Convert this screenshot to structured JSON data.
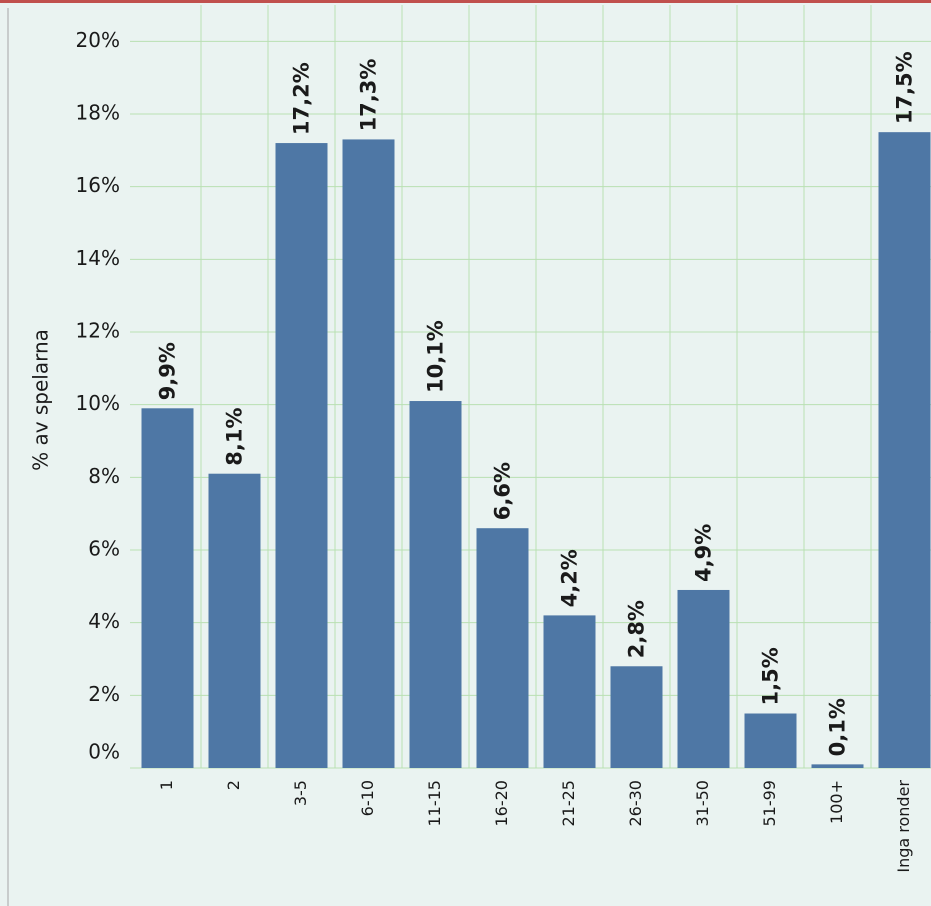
{
  "chart_data": {
    "type": "bar",
    "y_axis_label": "% av spelarna",
    "categories": [
      "1",
      "2",
      "3-5",
      "6-10",
      "11-15",
      "16-20",
      "21-25",
      "26-30",
      "31-50",
      "51-99",
      "100+",
      "Inga ronder"
    ],
    "values": [
      9.9,
      8.1,
      17.2,
      17.3,
      10.1,
      6.6,
      4.2,
      2.8,
      4.9,
      1.5,
      0.1,
      17.5
    ],
    "value_labels": [
      "9,9%",
      "8,1%",
      "17,2%",
      "17,3%",
      "10,1%",
      "6,6%",
      "4,2%",
      "2,8%",
      "4,9%",
      "1,5%",
      "0,1%",
      "17,5%"
    ],
    "color": "#4e77a5",
    "ylim": [
      0,
      21
    ],
    "yticks": [
      {
        "value": 0,
        "label": "0%"
      },
      {
        "value": 2,
        "label": "2%"
      },
      {
        "value": 4,
        "label": "4%"
      },
      {
        "value": 6,
        "label": "6%"
      },
      {
        "value": 8,
        "label": "8%"
      },
      {
        "value": 10,
        "label": "10%"
      },
      {
        "value": 12,
        "label": "12%"
      },
      {
        "value": 14,
        "label": "14%"
      },
      {
        "value": 16,
        "label": "16%"
      },
      {
        "value": 18,
        "label": "18%"
      },
      {
        "value": 20,
        "label": "20%"
      }
    ],
    "grid": true
  }
}
